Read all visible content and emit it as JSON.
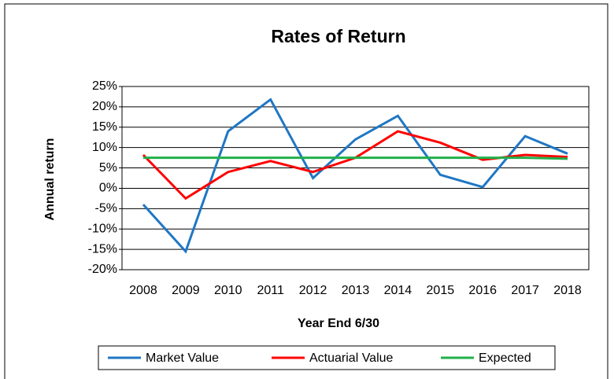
{
  "chart_data": {
    "type": "line",
    "title": "Rates of Return",
    "x_label": "Year End 6/30",
    "y_label": "Annual return",
    "categories": [
      "2008",
      "2009",
      "2010",
      "2011",
      "2012",
      "2013",
      "2014",
      "2015",
      "2016",
      "2017",
      "2018"
    ],
    "series": [
      {
        "name": "Market Value",
        "color": "#1f77c4",
        "values": [
          -4,
          -15.5,
          14,
          21.8,
          2.5,
          12,
          17.8,
          3.3,
          0.3,
          12.8,
          8.5
        ]
      },
      {
        "name": "Actuarial Value",
        "color": "#ff0000",
        "values": [
          8.2,
          -2.5,
          4,
          6.7,
          4,
          7.5,
          14,
          11.2,
          7,
          8.2,
          7.7
        ]
      },
      {
        "name": "Expected",
        "color": "#22b04b",
        "values": [
          7.5,
          7.5,
          7.5,
          7.5,
          7.5,
          7.5,
          7.5,
          7.5,
          7.5,
          7.5,
          7.25
        ]
      }
    ],
    "ylim": [
      -20,
      25
    ],
    "yticks": [
      {
        "value": -20,
        "label": "-20%"
      },
      {
        "value": -15,
        "label": "-15%"
      },
      {
        "value": -10,
        "label": "-10%"
      },
      {
        "value": -5,
        "label": "-5%"
      },
      {
        "value": 0,
        "label": "0%"
      },
      {
        "value": 5,
        "label": "5%"
      },
      {
        "value": 10,
        "label": "10%"
      },
      {
        "value": 15,
        "label": "15%"
      },
      {
        "value": 20,
        "label": "20%"
      },
      {
        "value": 25,
        "label": "25%"
      }
    ],
    "grid": true,
    "legend": "bottom"
  }
}
